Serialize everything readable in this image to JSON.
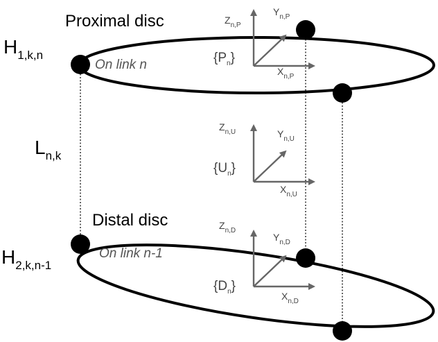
{
  "discs": {
    "proximal": {
      "title": "Proximal disc",
      "link_note": "On link n"
    },
    "distal": {
      "title": "Distal disc",
      "link_note": "On link n-1"
    }
  },
  "points": {
    "h1": {
      "base": "H",
      "sub": "1,k,n"
    },
    "h2": {
      "base": "H",
      "sub": "2,k,n-1"
    },
    "length": {
      "base": "L",
      "sub": "n,k"
    }
  },
  "frames": {
    "P": {
      "name": "{P",
      "name_sub": "n",
      "name_close": "}",
      "z": "Z",
      "z_sub": "n,P",
      "y": "Y",
      "y_sub": "n,P",
      "x": "X",
      "x_sub": "n,P"
    },
    "U": {
      "name": "{U",
      "name_sub": "n",
      "name_close": "}",
      "z": "Z",
      "z_sub": "n,U",
      "y": "Y",
      "y_sub": "n,U",
      "x": "X",
      "x_sub": "n,U"
    },
    "D": {
      "name": "{D",
      "name_sub": "n",
      "name_close": "}",
      "z": "Z",
      "z_sub": "n,D",
      "y": "Y",
      "y_sub": "n,D",
      "x": "X",
      "x_sub": "n,D"
    }
  },
  "colors": {
    "stroke": "#000000",
    "axis": "#666666",
    "dash": "#222222"
  }
}
